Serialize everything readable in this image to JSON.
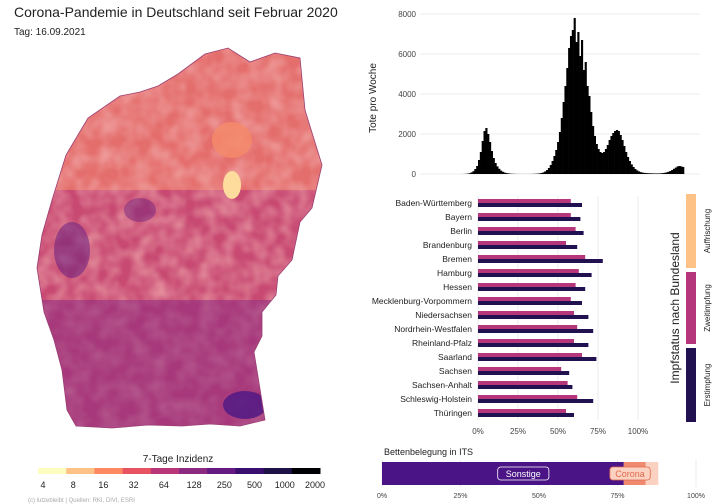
{
  "colors": {
    "background": "#ffffff",
    "first_dose": "#b5367a",
    "full": "#221150",
    "booster": "#fec287",
    "icu_other": "#4a1486",
    "icu_corona": "#f08a6e",
    "icu_free": "#fbd2c1",
    "grid": "#e6e6e6",
    "deaths": "#000000"
  },
  "header": {
    "title": "Corona-Pandemie in Deutschland seit Februar 2020",
    "date": "Tag: 16.09.2021"
  },
  "map": {
    "legend_title": "7-Tage Inzidenz",
    "legend_ticks": [
      "4",
      "8",
      "16",
      "32",
      "64",
      "128",
      "250",
      "500",
      "1000",
      "2000"
    ],
    "legend_colors": [
      "#fcfdbf",
      "#fec287",
      "#fc8961",
      "#e85362",
      "#b73779",
      "#8c2981",
      "#641a80",
      "#3b0f70",
      "#1d1147",
      "#000004"
    ],
    "credit": "(c) lutzebleibt | Quellen: RKI, DIVI, ESRI"
  },
  "chart_data": [
    {
      "type": "area",
      "title": "",
      "xlabel": "",
      "ylabel": "Tote pro Woche",
      "ylim": [
        0,
        8000
      ],
      "yticks": [
        "0",
        "2000",
        "4000",
        "6000",
        "8000"
      ],
      "grid": true,
      "values": [
        0,
        0,
        0,
        0,
        0,
        0,
        0,
        0,
        0,
        0,
        0,
        0,
        0,
        0,
        0,
        0,
        0,
        5,
        10,
        20,
        40,
        80,
        140,
        250,
        400,
        700,
        1100,
        1650,
        2150,
        2300,
        2000,
        1600,
        1150,
        800,
        550,
        380,
        260,
        170,
        110,
        70,
        45,
        30,
        20,
        12,
        8,
        5,
        4,
        3,
        2,
        2,
        2,
        2,
        3,
        4,
        6,
        9,
        13,
        20,
        30,
        50,
        80,
        130,
        200,
        300,
        450,
        650,
        900,
        1200,
        1600,
        2100,
        2800,
        3600,
        4400,
        5300,
        6300,
        6900,
        7200,
        7800,
        6600,
        7100,
        5900,
        6700,
        5200,
        5600,
        4400,
        3900,
        3100,
        2400,
        1900,
        1500,
        1250,
        1100,
        1050,
        1100,
        1250,
        1450,
        1700,
        1900,
        2050,
        2150,
        2200,
        2150,
        1950,
        1700,
        1400,
        1100,
        850,
        650,
        480,
        350,
        250,
        180,
        130,
        90,
        70,
        55,
        45,
        40,
        35,
        32,
        30,
        28,
        28,
        30,
        35,
        45,
        60,
        80,
        110,
        150,
        200,
        260,
        320,
        380,
        400,
        380,
        350
      ]
    },
    {
      "type": "bar",
      "ylabel": "Impfstatus nach Bundesland",
      "xticks": [
        "0%",
        "25%",
        "50%",
        "75%",
        "100%"
      ],
      "xlim": [
        0,
        1.3
      ],
      "grid": true,
      "categories": [
        "Baden-Württemberg",
        "Bayern",
        "Berlin",
        "Brandenburg",
        "Bremen",
        "Hamburg",
        "Hessen",
        "Mecklenburg-Vorpommern",
        "Niedersachsen",
        "Nordrhein-Westfalen",
        "Rheinland-Pfalz",
        "Saarland",
        "Sachsen",
        "Sachsen-Anhalt",
        "Schleswig-Holstein",
        "Thüringen"
      ],
      "series": [
        {
          "values": [
            0.58,
            0.58,
            0.61,
            0.55,
            0.67,
            0.63,
            0.61,
            0.58,
            0.6,
            0.62,
            0.6,
            0.65,
            0.52,
            0.56,
            0.62,
            0.55
          ]
        },
        {
          "values": [
            0.65,
            0.64,
            0.66,
            0.62,
            0.78,
            0.71,
            0.67,
            0.65,
            0.69,
            0.72,
            0.69,
            0.74,
            0.57,
            0.59,
            0.72,
            0.6
          ]
        }
      ],
      "legend_labels": [
        "Auffrischung",
        "Zweitimpfung",
        "Erstimpfung"
      ]
    },
    {
      "type": "bar",
      "title": "Bettenbelegung in ITS",
      "xticks": [
        "0%",
        "25%",
        "50%",
        "75%",
        "100%"
      ],
      "xlim": [
        0,
        1
      ],
      "segments": [
        {
          "name": "Sonstige",
          "value": 0.77
        },
        {
          "name": "Corona",
          "value": 0.07
        },
        {
          "name": "",
          "value": 0.04
        }
      ]
    }
  ]
}
